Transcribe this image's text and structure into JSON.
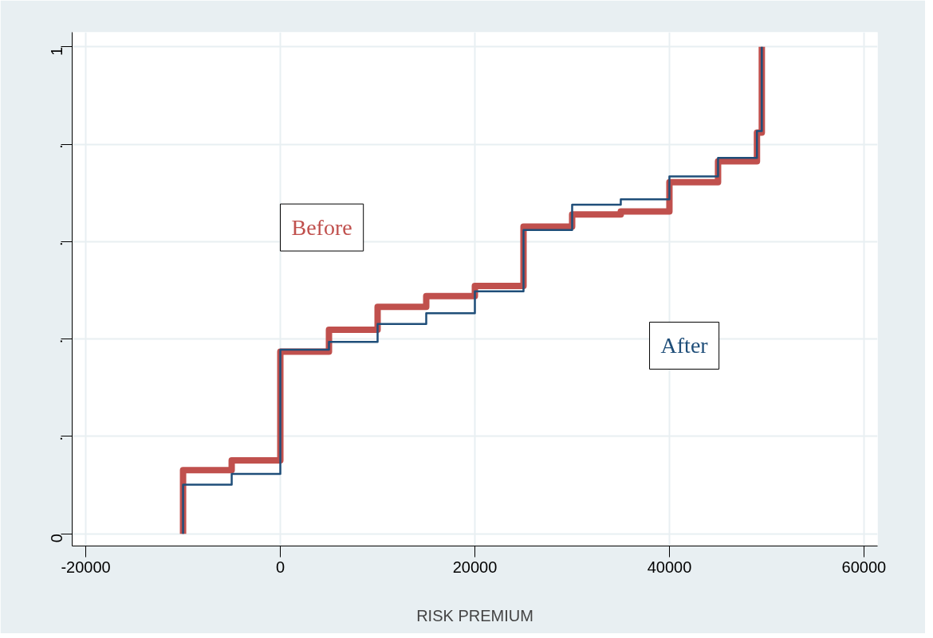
{
  "chart_data": {
    "type": "step",
    "xlabel": "RISK PREMIUM",
    "x": [
      -10000,
      -10000,
      -5000,
      0,
      5000,
      10000,
      15000,
      20000,
      25000,
      30000,
      35000,
      40000,
      45000,
      49000,
      49500
    ],
    "series": [
      {
        "name": "Before",
        "color": "#c0504d",
        "values": [
          0,
          0.131,
          0.151,
          0.374,
          0.419,
          0.466,
          0.488,
          0.509,
          0.631,
          0.656,
          0.662,
          0.722,
          0.765,
          0.824,
          1
        ]
      },
      {
        "name": "After",
        "color": "#1f4e79",
        "values": [
          0,
          0.101,
          0.123,
          0.378,
          0.394,
          0.431,
          0.453,
          0.498,
          0.624,
          0.676,
          0.687,
          0.734,
          0.772,
          0.827,
          1
        ]
      }
    ],
    "xlim": [
      -21400,
      61400
    ],
    "xticks": [
      -20000,
      0,
      20000,
      40000,
      60000
    ],
    "ylim": [
      -0.025,
      1.03
    ],
    "yticks": [
      0,
      {
        "value": 0.2,
        "label": "."
      },
      {
        "value": 0.4,
        "label": "."
      },
      {
        "value": 0.6,
        "label": "."
      },
      {
        "value": 0.8,
        "label": "."
      },
      1
    ],
    "grid": true
  }
}
